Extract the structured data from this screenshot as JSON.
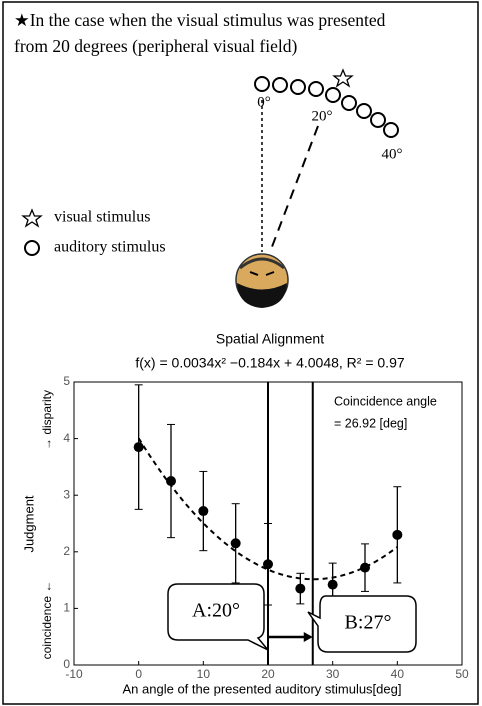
{
  "header": [
    "★In the case when the visual stimulus was presented",
    "from 20 degrees (peripheral visual field)"
  ],
  "diagram": {
    "angle_labels": [
      "0°",
      "20°",
      "40°"
    ],
    "legend": [
      "visual stimulus",
      "auditory stimulus"
    ]
  },
  "chart_data": {
    "type": "scatter",
    "title": "Spatial Alignment",
    "subtitle": "f(x) = 0.0034x² −0.184x + 4.0048, R² = 0.97",
    "fit": [
      0.0034,
      -0.184,
      4.0048
    ],
    "x_label": "An angle of the presented auditory stimulus[deg]",
    "y_label": "Judgment",
    "y_label_low": "coincidence ←",
    "y_label_high": "→ disparity",
    "x": [
      0,
      5,
      10,
      15,
      20,
      25,
      30,
      35,
      40
    ],
    "values": [
      3.85,
      3.25,
      2.72,
      2.15,
      1.78,
      1.35,
      1.42,
      1.72,
      2.3
    ],
    "errors": [
      1.1,
      1.0,
      0.7,
      0.7,
      0.72,
      0.27,
      0.38,
      0.42,
      0.85
    ],
    "color": "#000000",
    "xlim": [
      -10,
      50
    ],
    "xticks": [
      -10,
      0,
      10,
      20,
      30,
      40,
      50
    ],
    "ylim": [
      0,
      5
    ],
    "yticks": [
      0,
      1,
      2,
      3,
      4,
      5
    ],
    "grid": false,
    "annotation": [
      "Coincidence angle",
      "= 26.92 [deg]"
    ],
    "vlines": [
      {
        "value": 20,
        "label": "A:20°"
      },
      {
        "value": 26.92,
        "label": "B:27°"
      }
    ]
  }
}
